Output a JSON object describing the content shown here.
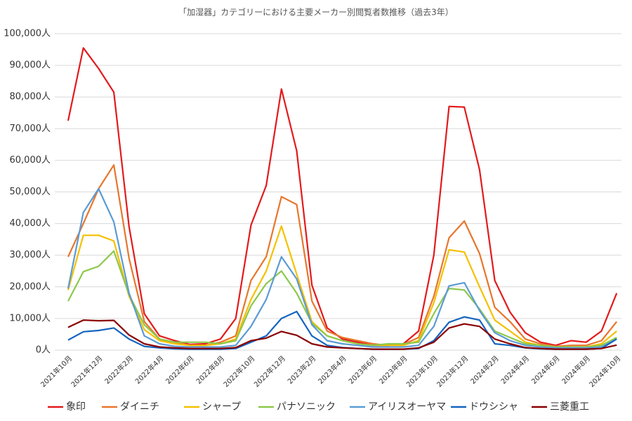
{
  "chart_data": {
    "type": "line",
    "title": "「加湿器」カテゴリーにおける主要メーカー別閲覧者数推移（過去3年）",
    "categories": [
      "2021年10月",
      null,
      "2021年12月",
      null,
      "2022年2月",
      null,
      "2022年4月",
      null,
      "2022年6月",
      null,
      "2022年8月",
      null,
      "2022年10月",
      null,
      "2022年12月",
      null,
      "2023年2月",
      null,
      "2023年4月",
      null,
      "2023年6月",
      null,
      "2023年8月",
      null,
      "2023年10月",
      null,
      "2023年12月",
      null,
      "2024年2月",
      null,
      "2024年4月",
      null,
      "2024年6月",
      null,
      "2024年8月",
      null,
      "2024年10月"
    ],
    "ylim": [
      0,
      100000
    ],
    "yticks": [
      {
        "value": 0,
        "label": "0人"
      },
      {
        "value": 10000,
        "label": "10,000人"
      },
      {
        "value": 20000,
        "label": "20,000人"
      },
      {
        "value": 30000,
        "label": "30,000人"
      },
      {
        "value": 40000,
        "label": "40,000人"
      },
      {
        "value": 50000,
        "label": "50,000人"
      },
      {
        "value": 60000,
        "label": "60,000人"
      },
      {
        "value": 70000,
        "label": "70,000人"
      },
      {
        "value": 80000,
        "label": "80,000人"
      },
      {
        "value": 90000,
        "label": "90,000人"
      },
      {
        "value": 100000,
        "label": "100,000人"
      }
    ],
    "grid": true,
    "legend": "bottom",
    "series": [
      {
        "name": "象印",
        "color": "#e31a1c",
        "values": [
          72500,
          95500,
          89000,
          81500,
          39000,
          11500,
          4500,
          3000,
          1800,
          2000,
          3500,
          10000,
          39500,
          52000,
          82500,
          63000,
          20500,
          7000,
          3500,
          2500,
          1500,
          1500,
          2000,
          6000,
          30000,
          77000,
          76800,
          57000,
          22000,
          12000,
          5500,
          2500,
          1500,
          3000,
          2500,
          6000,
          18000
        ]
      },
      {
        "name": "ダイニチ",
        "color": "#e8762c",
        "values": [
          29500,
          40000,
          51000,
          58500,
          29000,
          9000,
          3500,
          2500,
          1500,
          1500,
          2500,
          4500,
          22000,
          29500,
          48500,
          46000,
          15500,
          6000,
          4000,
          3000,
          2000,
          1500,
          1800,
          4000,
          17000,
          35500,
          40800,
          30500,
          13500,
          9000,
          3500,
          2000,
          1200,
          1500,
          1500,
          3000,
          9000
        ]
      },
      {
        "name": "シャープ",
        "color": "#f5c000",
        "values": [
          19000,
          36300,
          36300,
          34500,
          17000,
          6500,
          3000,
          2000,
          1500,
          1500,
          2000,
          3500,
          16000,
          25000,
          39200,
          24000,
          9000,
          4500,
          3000,
          2000,
          1500,
          1500,
          1500,
          3000,
          15000,
          31700,
          31000,
          20000,
          9500,
          6000,
          2500,
          1500,
          1000,
          1000,
          1000,
          2000,
          6000
        ]
      },
      {
        "name": "パナソニック",
        "color": "#8cc84b",
        "values": [
          15500,
          24800,
          26500,
          31300,
          17500,
          8000,
          3500,
          2500,
          2500,
          2500,
          2000,
          3000,
          14000,
          21000,
          25000,
          18000,
          8500,
          4500,
          3000,
          2000,
          1500,
          2000,
          2000,
          2500,
          11500,
          19500,
          19000,
          13000,
          6000,
          4000,
          2000,
          1500,
          1000,
          1000,
          1000,
          1500,
          4000
        ]
      },
      {
        "name": "アイリスオーヤマ",
        "color": "#5b9bd5",
        "values": [
          19500,
          43500,
          51000,
          40500,
          18000,
          4500,
          2000,
          1200,
          1000,
          1000,
          1000,
          1500,
          7500,
          16000,
          29500,
          22500,
          8000,
          3000,
          2000,
          1500,
          1000,
          1000,
          1000,
          1500,
          7500,
          20300,
          21300,
          12500,
          5500,
          3000,
          1500,
          1000,
          700,
          700,
          700,
          1000,
          3500
        ]
      },
      {
        "name": "ドウシシャ",
        "color": "#1565c0",
        "values": [
          3200,
          5800,
          6200,
          7000,
          3500,
          1200,
          700,
          400,
          300,
          300,
          300,
          500,
          2500,
          4500,
          10000,
          12200,
          4500,
          1500,
          800,
          500,
          300,
          300,
          300,
          500,
          3000,
          8800,
          10500,
          9500,
          2000,
          1500,
          700,
          400,
          300,
          300,
          300,
          500,
          3500
        ]
      },
      {
        "name": "三菱重工",
        "color": "#8b0000",
        "values": [
          7200,
          9500,
          9300,
          9400,
          4800,
          2000,
          1000,
          700,
          500,
          500,
          500,
          800,
          3000,
          3800,
          5900,
          4700,
          2000,
          1000,
          700,
          500,
          300,
          300,
          300,
          700,
          2500,
          7000,
          8300,
          7500,
          3500,
          2000,
          800,
          500,
          300,
          300,
          300,
          500,
          1600
        ]
      }
    ]
  }
}
